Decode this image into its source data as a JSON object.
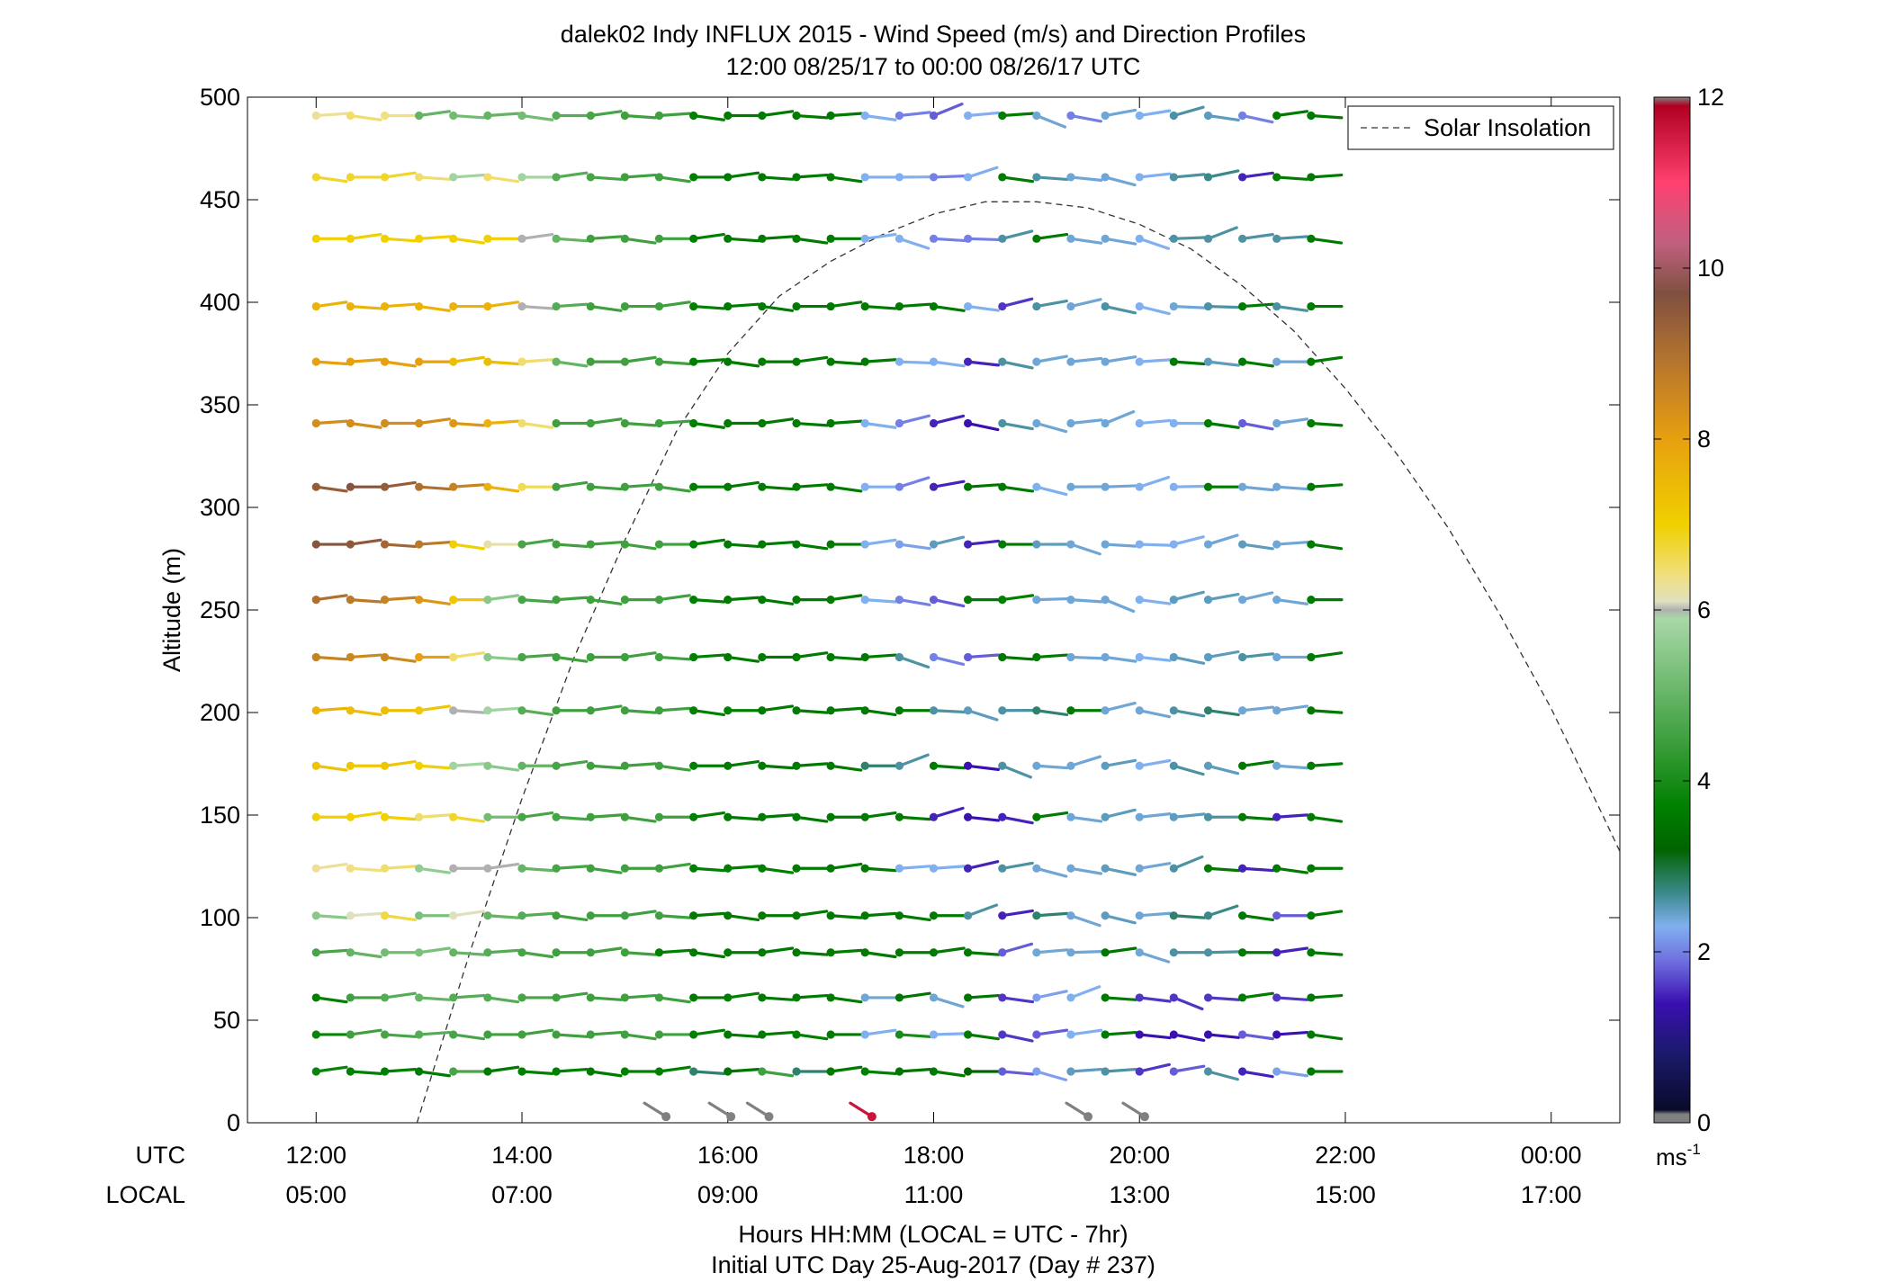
{
  "chart_data": {
    "type": "wind-profile",
    "title": "dalek02 Indy INFLUX 2015 - Wind Speed (m/s) and Direction Profiles",
    "subtitle": "12:00 08/25/17 to 00:00 08/26/17  UTC",
    "ylabel": "Altitude (m)",
    "xlabel": "Hours HH:MM  (LOCAL = UTC - 7hr)",
    "xlabel2": "Initial UTC Day 25-Aug-2017 (Day # 237)",
    "axis_row_labels": {
      "utc": "UTC",
      "local": "LOCAL"
    },
    "xlim_hours_utc": [
      11.333,
      24.667
    ],
    "ylim": [
      0,
      500
    ],
    "yticks": [
      0,
      50,
      100,
      150,
      200,
      250,
      300,
      350,
      400,
      450,
      500
    ],
    "yticklabels": [
      "0",
      "50",
      "100",
      "150",
      "200",
      "250",
      "300",
      "350",
      "400",
      "450",
      "500"
    ],
    "xticks_hours_utc": [
      12,
      14,
      16,
      18,
      20,
      22,
      24
    ],
    "xticklabels_utc": [
      "12:00",
      "14:00",
      "16:00",
      "18:00",
      "20:00",
      "22:00",
      "00:00"
    ],
    "xticklabels_local": [
      "05:00",
      "07:00",
      "09:00",
      "11:00",
      "13:00",
      "15:00",
      "17:00"
    ],
    "legend": {
      "label": "Solar Insolation",
      "position": "top-right",
      "style": "dashed"
    },
    "colorbar": {
      "range": [
        0,
        12
      ],
      "ticks": [
        0,
        2,
        4,
        6,
        8,
        10,
        12
      ],
      "ticklabels": [
        "0",
        "2",
        "4",
        "6",
        "8",
        "10",
        "12"
      ],
      "unit_label": "ms",
      "unit_exponent": "-1",
      "stops": [
        {
          "v": 0.0,
          "c": "#808080"
        },
        {
          "v": 0.1,
          "c": "#808080"
        },
        {
          "v": 0.15,
          "c": "#0a0a2a"
        },
        {
          "v": 0.8,
          "c": "#1a1a6a"
        },
        {
          "v": 1.4,
          "c": "#3a10b0"
        },
        {
          "v": 1.9,
          "c": "#7070e0"
        },
        {
          "v": 2.3,
          "c": "#80b0f0"
        },
        {
          "v": 2.7,
          "c": "#3a8888"
        },
        {
          "v": 3.2,
          "c": "#006400"
        },
        {
          "v": 3.7,
          "c": "#008000"
        },
        {
          "v": 4.5,
          "c": "#40a040"
        },
        {
          "v": 5.9,
          "c": "#a8d8a8"
        },
        {
          "v": 6.0,
          "c": "#b0b0b0"
        },
        {
          "v": 6.1,
          "c": "#e0e0c0"
        },
        {
          "v": 6.4,
          "c": "#f0e080"
        },
        {
          "v": 7.0,
          "c": "#f0d000"
        },
        {
          "v": 8.0,
          "c": "#e8a010"
        },
        {
          "v": 9.0,
          "c": "#b07030"
        },
        {
          "v": 9.7,
          "c": "#805040"
        },
        {
          "v": 10.3,
          "c": "#c06080"
        },
        {
          "v": 11.0,
          "c": "#ff4070"
        },
        {
          "v": 11.9,
          "c": "#b00020"
        },
        {
          "v": 12.0,
          "c": "#808080"
        }
      ]
    },
    "solar_insolation": {
      "x_hours_utc": [
        12.98,
        13.5,
        14.0,
        14.5,
        15.0,
        15.5,
        16.0,
        16.5,
        17.0,
        17.5,
        18.0,
        18.5,
        19.0,
        19.5,
        20.0,
        20.5,
        21.0,
        21.5,
        22.0,
        22.5,
        23.0,
        23.5,
        24.0,
        24.5,
        24.67
      ],
      "y_scaled_m": [
        0,
        84,
        158,
        226,
        284,
        337,
        375,
        403,
        420,
        433,
        443,
        449,
        449,
        446,
        438,
        426,
        408,
        386,
        358,
        326,
        290,
        248,
        202,
        150,
        132
      ],
      "note_units": "scaled to altitude axis"
    },
    "profile_times_hours_utc": [
      12.0,
      12.333,
      12.667,
      13.0,
      13.333,
      13.667,
      14.0,
      14.333,
      14.667,
      15.0,
      15.333,
      15.667,
      16.0,
      16.333,
      16.667,
      17.0,
      17.333,
      17.667,
      18.0,
      18.333,
      18.667,
      19.0,
      19.333,
      19.667,
      20.0,
      20.333,
      20.667,
      21.0,
      21.333,
      21.667
    ],
    "altitudes_m": [
      25,
      43,
      61,
      83,
      101,
      124,
      149,
      174,
      201,
      227,
      255,
      282,
      310,
      341,
      371,
      398,
      431,
      461,
      491
    ],
    "wind_speed_by_altitude": [
      [
        3.8,
        3.7,
        3.7,
        3.6,
        4.6,
        3.6,
        3.7,
        3.7,
        3.6,
        3.7,
        3.7,
        2.8,
        3.5,
        4.5,
        2.8,
        3.6,
        3.7,
        3.5,
        3.6,
        3.2,
        1.8,
        2.2,
        2.5,
        2.6,
        1.6,
        1.8,
        2.6,
        1.5,
        2.2,
        3.6
      ],
      [
        3.8,
        4.5,
        4.6,
        4.8,
        4.6,
        4.5,
        4.5,
        4.5,
        4.5,
        4.5,
        4.5,
        3.7,
        3.6,
        3.6,
        3.7,
        3.6,
        2.3,
        4.0,
        2.3,
        3.6,
        1.6,
        1.8,
        2.3,
        3.6,
        1.4,
        1.4,
        1.4,
        1.8,
        1.4,
        3.6
      ],
      [
        3.7,
        4.5,
        4.8,
        5.0,
        4.8,
        4.8,
        4.6,
        4.5,
        4.5,
        4.5,
        4.5,
        3.6,
        3.7,
        3.6,
        3.6,
        3.6,
        2.4,
        3.5,
        2.4,
        3.5,
        1.6,
        2.2,
        2.3,
        3.6,
        1.6,
        1.6,
        1.6,
        3.6,
        1.6,
        3.6
      ],
      [
        4.6,
        5.0,
        5.2,
        5.3,
        5.0,
        4.8,
        4.6,
        4.5,
        4.5,
        4.5,
        3.7,
        3.6,
        3.6,
        3.6,
        3.6,
        3.6,
        3.6,
        3.6,
        3.6,
        3.6,
        1.8,
        2.4,
        2.4,
        3.5,
        2.4,
        2.6,
        2.6,
        3.6,
        1.5,
        3.6
      ],
      [
        5.5,
        6.1,
        6.7,
        5.3,
        6.1,
        5.0,
        4.8,
        4.5,
        4.5,
        4.5,
        4.5,
        3.6,
        3.6,
        3.6,
        3.6,
        3.6,
        3.6,
        3.6,
        3.6,
        2.6,
        1.5,
        2.8,
        2.4,
        2.5,
        2.4,
        2.8,
        2.7,
        3.6,
        1.8,
        3.6
      ],
      [
        6.3,
        6.4,
        6.5,
        5.6,
        6.0,
        6.0,
        5.0,
        4.6,
        4.5,
        4.5,
        4.5,
        3.7,
        3.7,
        3.7,
        3.6,
        3.6,
        3.6,
        2.3,
        2.3,
        1.5,
        2.6,
        2.4,
        2.4,
        2.5,
        2.4,
        2.6,
        3.6,
        1.5,
        3.6,
        3.6
      ],
      [
        7.0,
        7.0,
        7.0,
        6.5,
        6.8,
        5.2,
        4.6,
        4.6,
        4.5,
        4.5,
        4.5,
        3.7,
        3.6,
        3.6,
        3.6,
        3.6,
        3.6,
        3.6,
        1.5,
        1.4,
        1.5,
        3.6,
        2.4,
        2.5,
        2.4,
        2.5,
        2.6,
        3.6,
        1.5,
        3.6
      ],
      [
        7.3,
        7.2,
        7.2,
        7.0,
        5.8,
        5.5,
        5.0,
        4.6,
        4.5,
        4.5,
        4.5,
        3.7,
        3.6,
        3.6,
        3.6,
        3.6,
        2.8,
        2.6,
        3.6,
        1.4,
        2.6,
        2.4,
        2.4,
        2.5,
        2.3,
        2.6,
        2.5,
        3.6,
        2.4,
        3.6
      ],
      [
        7.6,
        7.4,
        7.4,
        7.2,
        6.0,
        5.8,
        4.8,
        4.5,
        4.5,
        4.5,
        4.5,
        3.7,
        3.7,
        3.6,
        3.6,
        3.6,
        3.6,
        3.6,
        2.6,
        2.5,
        2.6,
        2.8,
        3.6,
        2.4,
        2.4,
        2.6,
        2.8,
        2.4,
        2.4,
        3.6
      ],
      [
        8.6,
        8.5,
        8.5,
        8.0,
        6.5,
        5.5,
        4.6,
        4.5,
        4.5,
        4.5,
        4.5,
        3.7,
        3.6,
        3.6,
        3.6,
        3.6,
        3.6,
        2.6,
        2.0,
        1.8,
        3.5,
        3.6,
        2.4,
        2.4,
        2.3,
        2.5,
        2.5,
        2.6,
        2.4,
        3.6
      ],
      [
        9.0,
        8.8,
        8.6,
        8.2,
        7.2,
        5.5,
        4.6,
        4.5,
        4.5,
        4.5,
        4.5,
        3.7,
        3.6,
        3.6,
        3.6,
        3.6,
        2.3,
        2.0,
        1.8,
        3.6,
        3.7,
        2.4,
        2.4,
        2.4,
        2.3,
        2.5,
        2.5,
        2.4,
        2.4,
        3.6
      ],
      [
        9.6,
        9.5,
        9.2,
        8.8,
        7.0,
        6.2,
        4.6,
        4.5,
        4.5,
        4.5,
        4.5,
        3.7,
        3.6,
        3.6,
        3.6,
        3.6,
        2.3,
        2.2,
        2.5,
        1.5,
        3.6,
        2.5,
        2.4,
        2.4,
        2.3,
        2.3,
        2.4,
        2.5,
        2.4,
        3.6
      ],
      [
        9.4,
        9.6,
        9.4,
        9.0,
        8.6,
        7.6,
        6.6,
        4.5,
        4.5,
        4.5,
        4.5,
        3.7,
        3.6,
        3.6,
        3.6,
        3.6,
        2.3,
        2.0,
        1.5,
        3.5,
        3.6,
        2.3,
        2.4,
        2.4,
        2.3,
        2.3,
        3.6,
        2.4,
        2.4,
        3.6
      ],
      [
        8.4,
        8.4,
        8.4,
        8.4,
        8.2,
        7.6,
        6.5,
        4.5,
        4.5,
        4.5,
        4.5,
        3.7,
        3.6,
        3.6,
        3.6,
        3.6,
        2.3,
        2.0,
        1.5,
        1.4,
        2.6,
        2.4,
        2.4,
        2.4,
        2.3,
        2.3,
        3.6,
        1.8,
        2.4,
        3.6
      ],
      [
        8.0,
        8.0,
        8.0,
        8.0,
        7.4,
        7.4,
        6.5,
        5.0,
        4.5,
        4.5,
        4.5,
        3.7,
        3.6,
        3.6,
        3.6,
        3.6,
        3.6,
        2.3,
        2.3,
        1.5,
        2.6,
        2.4,
        2.4,
        2.4,
        2.3,
        3.6,
        2.5,
        3.6,
        2.4,
        3.6
      ],
      [
        7.6,
        7.6,
        7.6,
        7.6,
        7.6,
        7.6,
        6.0,
        4.8,
        4.5,
        4.5,
        4.5,
        3.7,
        3.6,
        3.6,
        3.6,
        3.6,
        3.6,
        3.6,
        3.6,
        2.3,
        1.6,
        2.6,
        2.4,
        2.6,
        2.3,
        2.4,
        2.6,
        3.6,
        2.6,
        3.6
      ],
      [
        7.0,
        7.0,
        7.0,
        7.0,
        7.0,
        7.0,
        6.0,
        5.0,
        4.5,
        4.5,
        4.5,
        3.7,
        3.6,
        3.6,
        3.6,
        3.6,
        2.3,
        2.3,
        2.0,
        2.0,
        2.6,
        3.6,
        2.4,
        2.4,
        2.3,
        2.6,
        2.6,
        2.6,
        2.6,
        3.6
      ],
      [
        6.8,
        6.8,
        6.8,
        6.5,
        5.8,
        6.5,
        5.8,
        4.8,
        4.6,
        4.5,
        4.5,
        3.7,
        3.6,
        3.6,
        3.6,
        3.6,
        2.3,
        2.3,
        2.0,
        2.3,
        3.6,
        2.6,
        2.4,
        2.4,
        2.3,
        2.6,
        2.7,
        1.5,
        3.6,
        3.6
      ],
      [
        6.3,
        6.5,
        6.4,
        5.0,
        5.2,
        5.0,
        5.2,
        4.8,
        4.6,
        4.5,
        4.5,
        3.7,
        3.6,
        3.6,
        3.6,
        3.6,
        2.3,
        2.0,
        1.8,
        2.3,
        3.6,
        2.4,
        2.0,
        2.4,
        2.3,
        2.6,
        2.5,
        2.0,
        3.6,
        3.6
      ]
    ],
    "surface_points": [
      {
        "x_hours_utc": 15.4,
        "speed": 0.0
      },
      {
        "x_hours_utc": 16.03,
        "speed": 0.0
      },
      {
        "x_hours_utc": 16.4,
        "speed": 0.0
      },
      {
        "x_hours_utc": 17.4,
        "speed": 11.6
      },
      {
        "x_hours_utc": 19.5,
        "speed": 0.0
      },
      {
        "x_hours_utc": 20.05,
        "speed": 0.0
      }
    ]
  }
}
